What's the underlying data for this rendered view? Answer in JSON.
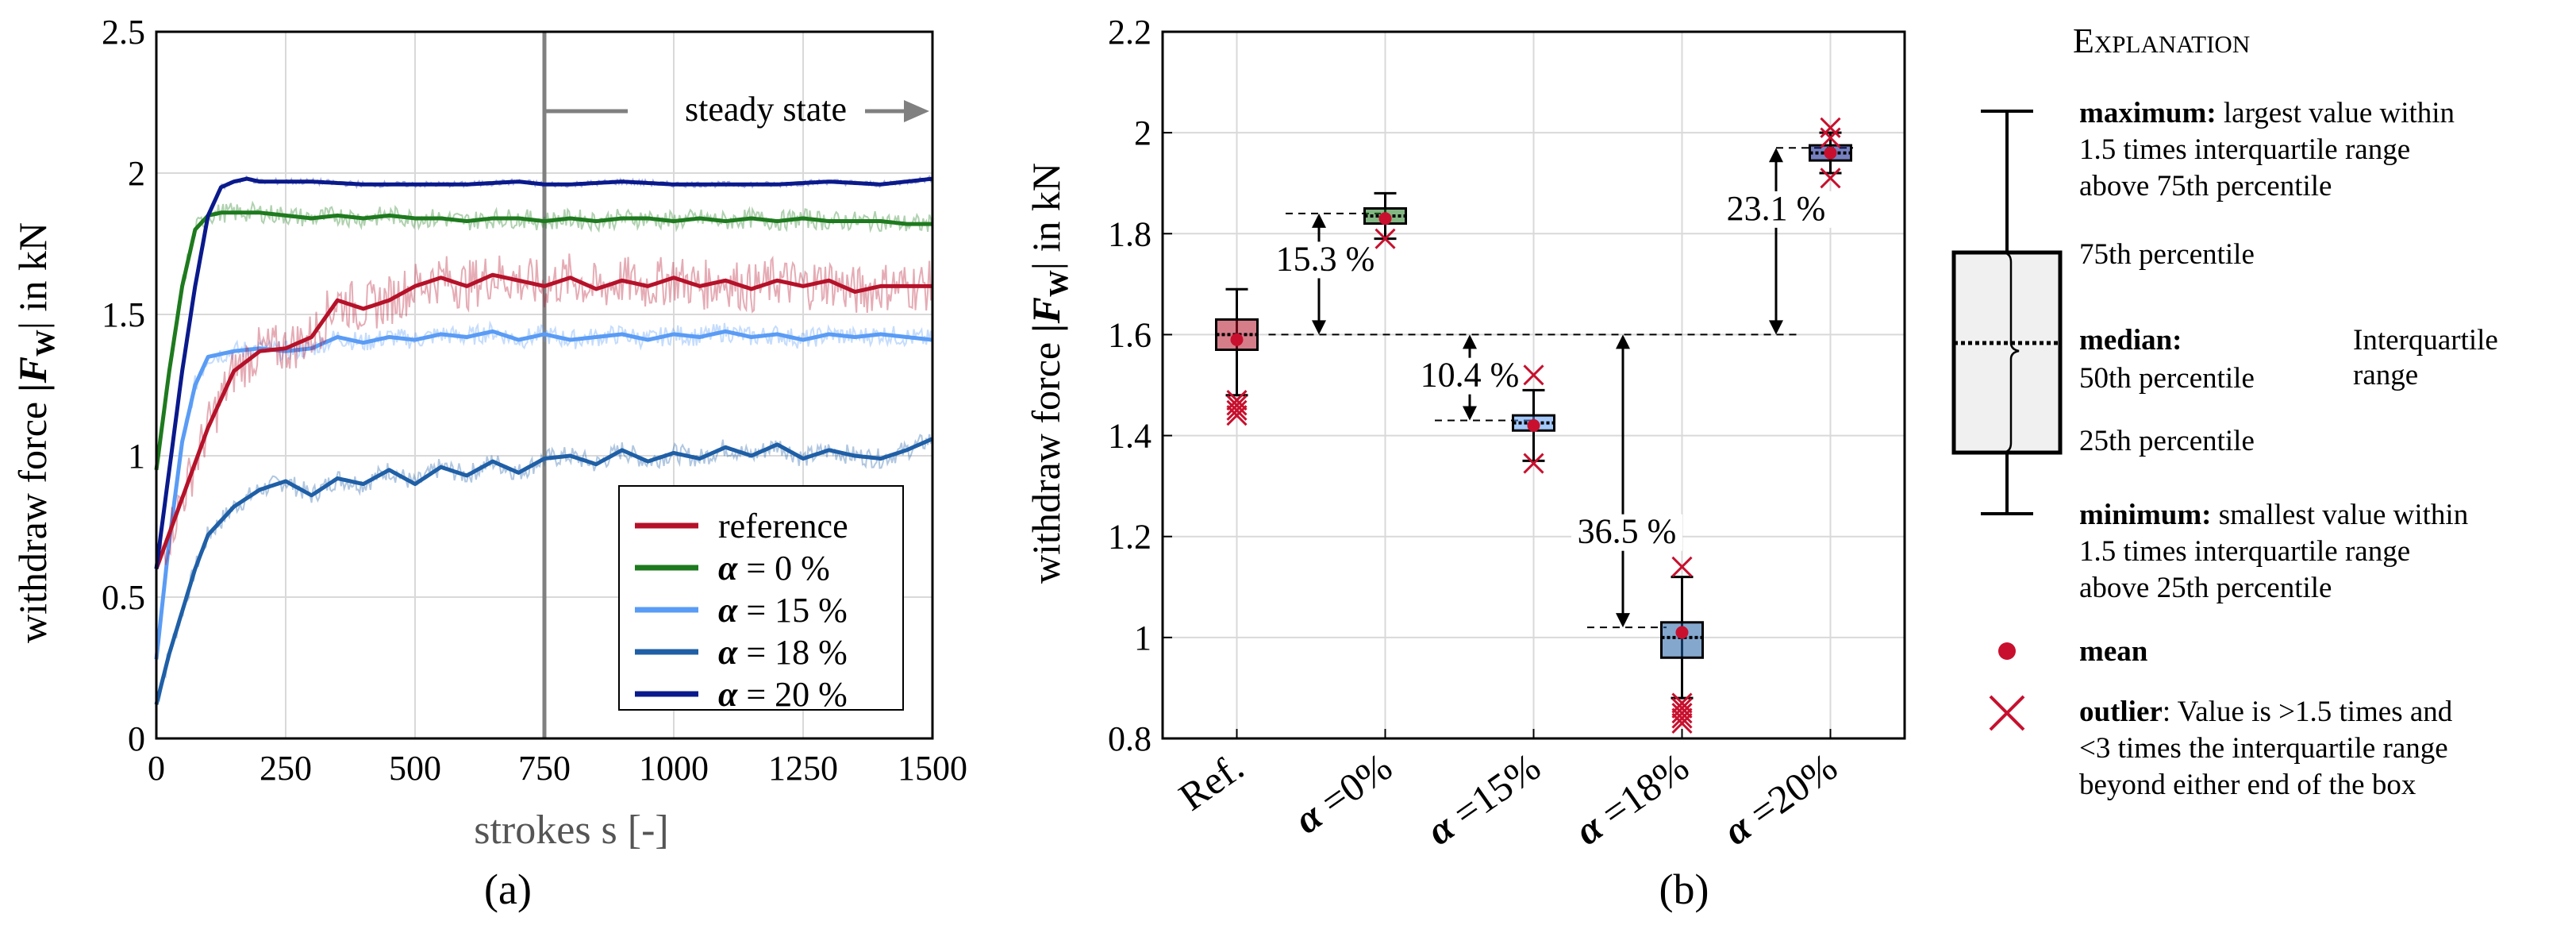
{
  "colors": {
    "reference": "#b5122a",
    "a0": "#1e7a1e",
    "a15": "#5a9cf5",
    "a18": "#1f5fa6",
    "a20": "#0a1a8c",
    "axis": "#000000",
    "grid": "#d9d9d9",
    "steady": "#808080"
  },
  "panel_a": {
    "caption": "(a)",
    "steady_label": "steady state",
    "ylabel_prefix": "withdraw force ",
    "ylabel_sym": "|F",
    "ylabel_sub": "W",
    "ylabel_suffix": "| in kN"
  },
  "panel_b": {
    "caption": "(b)",
    "ylabel_prefix": "withdraw force ",
    "ylabel_sym": "|F",
    "ylabel_sub": "W",
    "ylabel_suffix": "| in kN",
    "annotations": [
      {
        "text": "15.3 %",
        "from": 1.84,
        "to": 1.6
      },
      {
        "text": "10.4 %",
        "from": 1.6,
        "to": 1.43
      },
      {
        "text": "36.5 %",
        "from": 1.6,
        "to": 1.02
      },
      {
        "text": "23.1 %",
        "from": 1.97,
        "to": 1.6
      }
    ]
  },
  "explanation": {
    "title": "Explanation",
    "max_bold": "maximum:",
    "max_text1": " largest value within",
    "max_text2": "1.5 times interquartile range",
    "max_text3": "above 75th percentile",
    "p75": "75th percentile",
    "median_bold": "median:",
    "median_text": "50th percentile",
    "p25": "25th percentile",
    "iqr1": "Interquartile",
    "iqr2": "range",
    "min_bold": "minimum:",
    "min_text1": " smallest value within",
    "min_text2": "1.5 times interquartile range",
    "min_text3": "above 25th percentile",
    "mean_bold": "mean",
    "outlier_bold": "outlier",
    "outlier_text1": ": Value is >1.5 times and",
    "outlier_text2": "<3 times the interquartile range",
    "outlier_text3": "beyond either end of the box"
  },
  "chart_data": [
    {
      "type": "line",
      "title": "",
      "xlabel": "strokes s [-]",
      "ylabel": "withdraw force |FW| in kN",
      "xlim": [
        0,
        1500
      ],
      "ylim": [
        0,
        2.5
      ],
      "xticks": [
        0,
        250,
        500,
        750,
        1000,
        1250,
        1500
      ],
      "yticks": [
        0,
        0.5,
        1,
        1.5,
        2,
        2.5
      ],
      "xtick_labels": [
        "0",
        "250",
        "500",
        "750",
        "1000",
        "1250",
        "1500"
      ],
      "ytick_labels": [
        "0",
        "0.5",
        "1",
        "1.5",
        "2",
        "2.5"
      ],
      "grid": true,
      "steady_state_start": 750,
      "legend_position": "bottom-right",
      "series": [
        {
          "name": "reference",
          "key": "reference",
          "x": [
            0,
            50,
            100,
            150,
            200,
            250,
            300,
            350,
            400,
            450,
            500,
            550,
            600,
            650,
            700,
            750,
            800,
            850,
            900,
            950,
            1000,
            1050,
            1100,
            1150,
            1200,
            1250,
            1300,
            1350,
            1400,
            1450,
            1500
          ],
          "values": [
            0.6,
            0.85,
            1.1,
            1.3,
            1.37,
            1.38,
            1.42,
            1.55,
            1.52,
            1.55,
            1.6,
            1.63,
            1.6,
            1.64,
            1.62,
            1.6,
            1.63,
            1.59,
            1.62,
            1.6,
            1.63,
            1.6,
            1.62,
            1.59,
            1.62,
            1.6,
            1.62,
            1.58,
            1.6,
            1.6,
            1.6
          ]
        },
        {
          "name": "α = 0 %",
          "key": "a0",
          "x": [
            0,
            25,
            50,
            75,
            100,
            125,
            150,
            200,
            250,
            300,
            350,
            400,
            450,
            500,
            550,
            600,
            650,
            700,
            750,
            800,
            850,
            900,
            950,
            1000,
            1050,
            1100,
            1150,
            1200,
            1250,
            1300,
            1350,
            1400,
            1450,
            1500
          ],
          "values": [
            0.95,
            1.3,
            1.6,
            1.8,
            1.85,
            1.86,
            1.86,
            1.86,
            1.85,
            1.84,
            1.85,
            1.84,
            1.85,
            1.84,
            1.84,
            1.83,
            1.84,
            1.84,
            1.83,
            1.84,
            1.83,
            1.84,
            1.84,
            1.83,
            1.84,
            1.83,
            1.84,
            1.83,
            1.84,
            1.83,
            1.83,
            1.83,
            1.82,
            1.82
          ]
        },
        {
          "name": "α = 15 %",
          "key": "a15",
          "x": [
            0,
            25,
            50,
            75,
            100,
            150,
            200,
            250,
            300,
            350,
            400,
            450,
            500,
            550,
            600,
            650,
            700,
            750,
            800,
            850,
            900,
            950,
            1000,
            1050,
            1100,
            1150,
            1200,
            1250,
            1300,
            1350,
            1400,
            1450,
            1500
          ],
          "values": [
            0.28,
            0.7,
            1.05,
            1.25,
            1.35,
            1.37,
            1.38,
            1.37,
            1.38,
            1.42,
            1.4,
            1.42,
            1.41,
            1.43,
            1.42,
            1.44,
            1.41,
            1.43,
            1.41,
            1.42,
            1.43,
            1.41,
            1.43,
            1.42,
            1.44,
            1.42,
            1.43,
            1.41,
            1.43,
            1.42,
            1.43,
            1.42,
            1.41
          ]
        },
        {
          "name": "α = 18 %",
          "key": "a18",
          "x": [
            0,
            25,
            50,
            75,
            100,
            150,
            200,
            250,
            300,
            350,
            400,
            450,
            500,
            550,
            600,
            650,
            700,
            750,
            800,
            850,
            900,
            950,
            1000,
            1050,
            1100,
            1150,
            1200,
            1250,
            1300,
            1350,
            1400,
            1450,
            1500
          ],
          "values": [
            0.12,
            0.3,
            0.45,
            0.6,
            0.72,
            0.82,
            0.88,
            0.91,
            0.86,
            0.92,
            0.9,
            0.95,
            0.9,
            0.96,
            0.93,
            0.98,
            0.94,
            0.99,
            1.0,
            0.97,
            1.02,
            0.98,
            1.01,
            0.99,
            1.03,
            1.0,
            1.04,
            0.99,
            1.02,
            1.0,
            0.99,
            1.02,
            1.06
          ]
        },
        {
          "name": "α = 20 %",
          "key": "a20",
          "x": [
            0,
            25,
            50,
            75,
            100,
            125,
            150,
            175,
            200,
            250,
            300,
            400,
            500,
            600,
            700,
            750,
            800,
            900,
            1000,
            1100,
            1200,
            1300,
            1400,
            1450,
            1500
          ],
          "values": [
            0.6,
            0.95,
            1.3,
            1.6,
            1.85,
            1.95,
            1.97,
            1.98,
            1.97,
            1.97,
            1.97,
            1.96,
            1.96,
            1.96,
            1.97,
            1.96,
            1.96,
            1.97,
            1.96,
            1.96,
            1.96,
            1.97,
            1.96,
            1.97,
            1.98
          ]
        }
      ]
    },
    {
      "type": "box",
      "title": "",
      "xlabel": "",
      "ylabel": "withdraw force |FW| in kN",
      "ylim": [
        0.8,
        2.2
      ],
      "yticks": [
        0.8,
        1,
        1.2,
        1.4,
        1.6,
        1.8,
        2,
        2.2
      ],
      "ytick_labels": [
        "0.8",
        "1",
        "1.2",
        "1.4",
        "1.6",
        "1.8",
        "2",
        "2.2"
      ],
      "grid": true,
      "reference_line": 1.6,
      "categories": [
        "Ref.",
        "α =0%",
        "α =15%",
        "α =18%",
        "α =20%"
      ],
      "boxes": [
        {
          "key": "reference",
          "min": 1.48,
          "q1": 1.57,
          "median": 1.6,
          "q3": 1.63,
          "max": 1.69,
          "mean": 1.59,
          "outliers": [
            1.44,
            1.45,
            1.46,
            1.47
          ]
        },
        {
          "key": "a0",
          "min": 1.79,
          "q1": 1.82,
          "median": 1.835,
          "q3": 1.85,
          "max": 1.88,
          "mean": 1.83,
          "outliers": [
            1.79
          ]
        },
        {
          "key": "a15",
          "min": 1.35,
          "q1": 1.41,
          "median": 1.425,
          "q3": 1.44,
          "max": 1.49,
          "mean": 1.42,
          "outliers": [
            1.345,
            1.52
          ]
        },
        {
          "key": "a18",
          "min": 0.88,
          "q1": 0.96,
          "median": 1.0,
          "q3": 1.03,
          "max": 1.12,
          "mean": 1.01,
          "outliers": [
            0.83,
            0.84,
            0.85,
            0.86,
            0.87,
            1.14
          ]
        },
        {
          "key": "a20",
          "min": 1.92,
          "q1": 1.945,
          "median": 1.96,
          "q3": 1.975,
          "max": 2.0,
          "mean": 1.96,
          "outliers": [
            1.91,
            1.99,
            2.01
          ]
        }
      ]
    }
  ]
}
